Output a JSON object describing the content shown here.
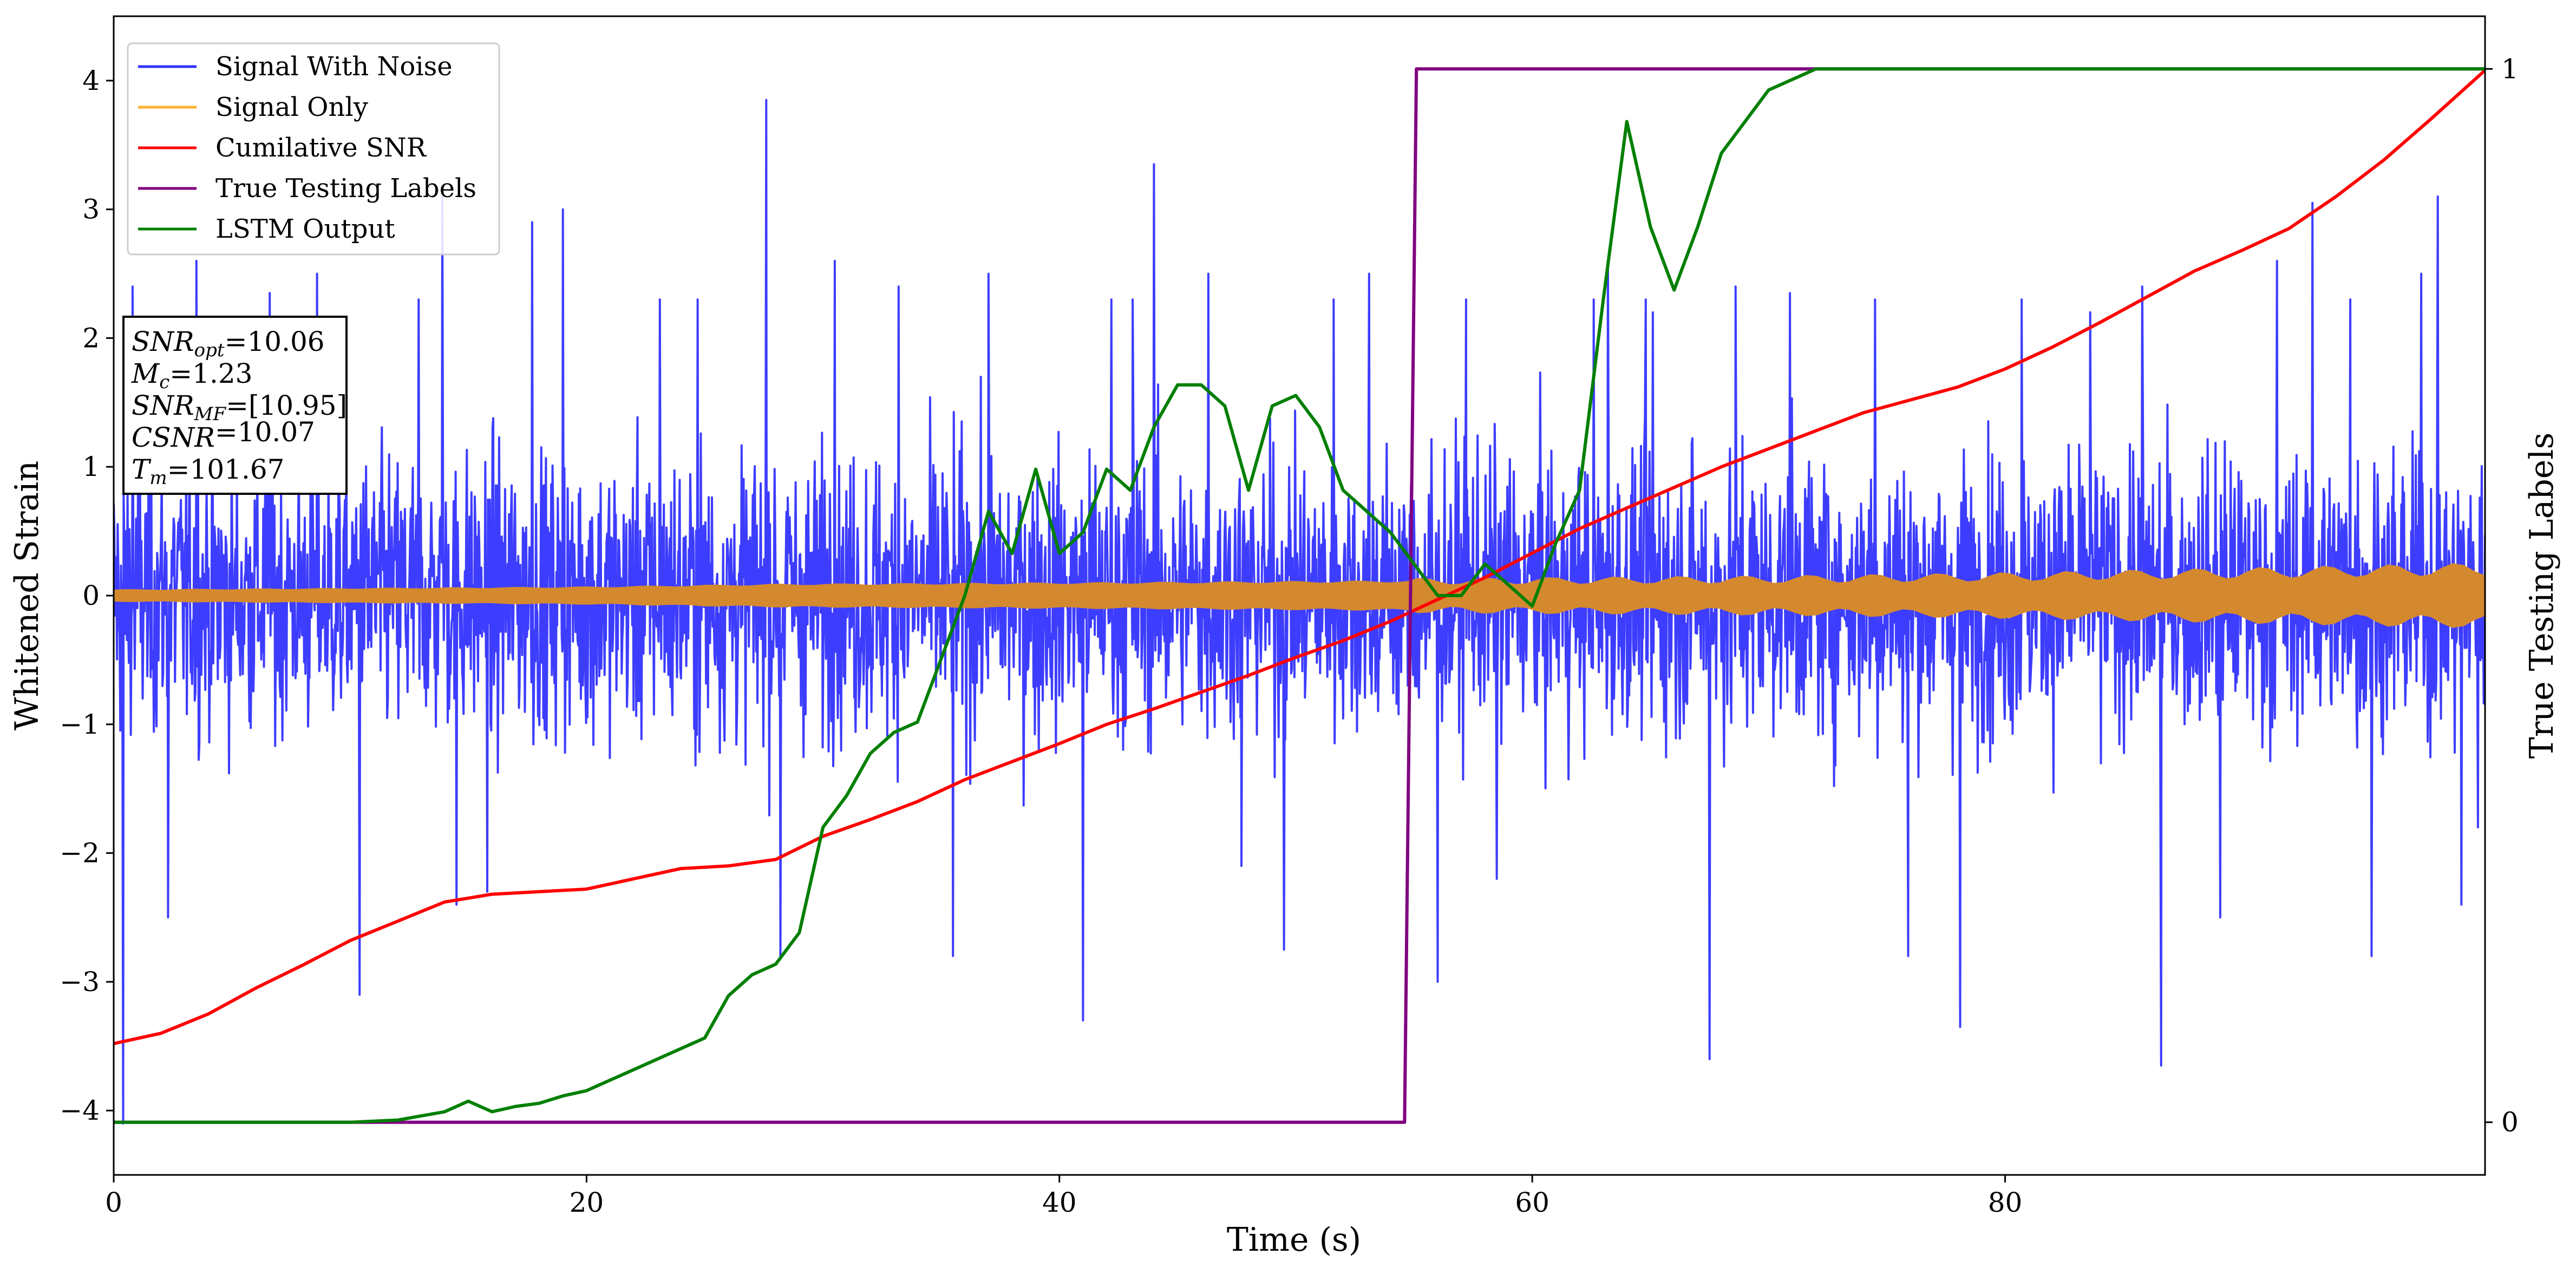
{
  "chart_data": {
    "type": "line",
    "xlabel": "Time (s)",
    "ylabel_left": "Whitened Strain",
    "ylabel_right": "True Testing Labels",
    "xlim": [
      0,
      100.3
    ],
    "ylim_left": [
      -4.5,
      4.5
    ],
    "ylim_right": [
      -0.05,
      1.05
    ],
    "x_ticks": [
      0,
      20,
      40,
      60,
      80
    ],
    "x_tick_labels": [
      "0",
      "20",
      "40",
      "60",
      "80"
    ],
    "y_ticks_left": [
      -4,
      -3,
      -2,
      -1,
      0,
      1,
      2,
      3,
      4
    ],
    "y_tick_labels_left": [
      "−4",
      "−3",
      "−2",
      "−1",
      "0",
      "1",
      "2",
      "3",
      "4"
    ],
    "y_ticks_right": [
      0,
      1
    ],
    "y_tick_labels_right": [
      "0",
      "1"
    ],
    "grid": false,
    "legend_position": "upper-left",
    "series": [
      {
        "name": "Signal With Noise",
        "color": "#3333ff",
        "axis": "left",
        "kind": "noise",
        "typical_range": [
          -1.6,
          1.6
        ],
        "peaks": [
          [
            0.4,
            -4.1
          ],
          [
            0.8,
            2.4
          ],
          [
            2.3,
            -2.5
          ],
          [
            3.5,
            2.6
          ],
          [
            6.6,
            2.35
          ],
          [
            8.6,
            2.5
          ],
          [
            10.4,
            -3.1
          ],
          [
            12.9,
            2.3
          ],
          [
            13.9,
            3.1
          ],
          [
            14.5,
            -2.4
          ],
          [
            15.8,
            -2.3
          ],
          [
            17.7,
            2.9
          ],
          [
            19.0,
            3.0
          ],
          [
            23.1,
            2.3
          ],
          [
            24.7,
            2.3
          ],
          [
            27.6,
            3.85
          ],
          [
            28.2,
            -2.8
          ],
          [
            30.5,
            2.6
          ],
          [
            33.2,
            2.4
          ],
          [
            35.5,
            -2.8
          ],
          [
            37.0,
            2.5
          ],
          [
            41.0,
            -3.3
          ],
          [
            42.2,
            2.3
          ],
          [
            43.1,
            2.3
          ],
          [
            44.0,
            3.35
          ],
          [
            46.3,
            2.5
          ],
          [
            47.7,
            -2.1
          ],
          [
            49.5,
            -2.75
          ],
          [
            51.6,
            2.3
          ],
          [
            53.1,
            2.5
          ],
          [
            56.0,
            -3.0
          ],
          [
            57.2,
            2.3
          ],
          [
            58.5,
            -2.2
          ],
          [
            62.6,
            2.3
          ],
          [
            63.2,
            2.6
          ],
          [
            64.8,
            2.3
          ],
          [
            65.1,
            2.2
          ],
          [
            67.5,
            -3.6
          ],
          [
            68.6,
            2.4
          ],
          [
            70.9,
            2.35
          ],
          [
            74.5,
            2.3
          ],
          [
            75.9,
            -2.8
          ],
          [
            78.1,
            -3.35
          ],
          [
            80.7,
            2.3
          ],
          [
            83.6,
            2.2
          ],
          [
            85.8,
            2.4
          ],
          [
            86.6,
            -3.65
          ],
          [
            89.1,
            -2.5
          ],
          [
            91.5,
            2.6
          ],
          [
            93.0,
            3.05
          ],
          [
            94.6,
            2.3
          ],
          [
            95.5,
            -2.8
          ],
          [
            97.6,
            2.5
          ],
          [
            98.3,
            3.1
          ],
          [
            99.3,
            -2.4
          ],
          [
            100.0,
            -1.8
          ]
        ]
      },
      {
        "name": "Signal Only",
        "color": "#d4892f",
        "axis": "left",
        "kind": "envelope",
        "amplitude": [
          [
            0,
            0.04
          ],
          [
            10,
            0.05
          ],
          [
            20,
            0.06
          ],
          [
            28,
            0.08
          ],
          [
            40,
            0.09
          ],
          [
            50,
            0.1
          ],
          [
            60,
            0.11
          ],
          [
            70,
            0.12
          ],
          [
            80,
            0.14
          ],
          [
            90,
            0.17
          ],
          [
            100,
            0.2
          ]
        ]
      },
      {
        "name": "Cumilative SNR",
        "color": "#ff0000",
        "axis": "left",
        "x": [
          0,
          2,
          4,
          6,
          8,
          10,
          12,
          14,
          16,
          18,
          20,
          22,
          24,
          26,
          28,
          30,
          32,
          34,
          36,
          38,
          40,
          42,
          44,
          46,
          48,
          50,
          52,
          54,
          56,
          58,
          60,
          62,
          64,
          66,
          68,
          70,
          72,
          74,
          76,
          78,
          80,
          82,
          84,
          86,
          88,
          90,
          92,
          94,
          96,
          98,
          100.3
        ],
        "y": [
          -3.48,
          -3.4,
          -3.25,
          -3.05,
          -2.87,
          -2.68,
          -2.53,
          -2.38,
          -2.32,
          -2.3,
          -2.28,
          -2.2,
          -2.12,
          -2.1,
          -2.05,
          -1.87,
          -1.74,
          -1.6,
          -1.43,
          -1.29,
          -1.15,
          -1.0,
          -0.88,
          -0.75,
          -0.62,
          -0.48,
          -0.35,
          -0.2,
          -0.03,
          0.14,
          0.33,
          0.52,
          0.68,
          0.84,
          1.0,
          1.14,
          1.28,
          1.42,
          1.52,
          1.62,
          1.76,
          1.93,
          2.12,
          2.32,
          2.52,
          2.68,
          2.85,
          3.1,
          3.38,
          3.7,
          4.08
        ]
      },
      {
        "name": "True Testing Labels",
        "color": "#800080",
        "axis": "right",
        "x": [
          0,
          54.6,
          55.1,
          100.3
        ],
        "y": [
          0,
          0,
          1,
          1
        ]
      },
      {
        "name": "LSTM Output",
        "color": "#007f00",
        "axis": "right",
        "x": [
          0,
          10,
          12,
          14,
          15,
          16,
          17,
          18,
          19,
          20,
          21,
          22,
          23,
          24,
          25,
          26,
          27,
          28,
          29,
          30,
          31,
          32,
          33,
          34,
          35,
          36,
          37,
          38,
          39,
          40,
          41,
          42,
          43,
          44,
          45,
          46,
          47,
          48,
          49,
          50,
          51,
          52,
          53,
          54,
          55,
          56,
          57,
          58,
          59,
          60,
          61,
          62,
          63,
          64,
          65,
          66,
          67,
          68,
          69,
          70,
          72,
          74,
          78,
          80,
          100.3
        ],
        "y": [
          0,
          0,
          0.002,
          0.01,
          0.02,
          0.01,
          0.015,
          0.018,
          0.025,
          0.03,
          0.04,
          0.05,
          0.06,
          0.07,
          0.08,
          0.12,
          0.14,
          0.15,
          0.18,
          0.28,
          0.31,
          0.35,
          0.37,
          0.38,
          0.44,
          0.5,
          0.58,
          0.54,
          0.62,
          0.54,
          0.56,
          0.62,
          0.6,
          0.66,
          0.7,
          0.7,
          0.68,
          0.6,
          0.68,
          0.69,
          0.66,
          0.6,
          0.58,
          0.56,
          0.53,
          0.5,
          0.5,
          0.53,
          0.51,
          0.49,
          0.55,
          0.6,
          0.78,
          0.95,
          0.85,
          0.79,
          0.85,
          0.92,
          0.95,
          0.98,
          1.0,
          1.0,
          1.0,
          1.0,
          1.0
        ]
      }
    ]
  },
  "info_box": [
    {
      "name": "SNR",
      "sub": "opt",
      "value": "=10.06"
    },
    {
      "name": "M",
      "sub": "c",
      "value": "=1.23"
    },
    {
      "name": "SNR",
      "sub": "MF",
      "value": "=[10.95]"
    },
    {
      "name": "CSNR",
      "sub": "",
      "value": "=10.07"
    },
    {
      "name": "T",
      "sub": "m",
      "value": "=101.67"
    }
  ]
}
